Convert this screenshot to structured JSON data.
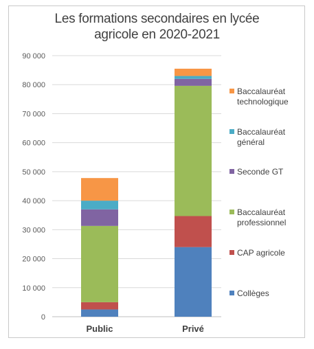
{
  "chart_data": {
    "type": "bar",
    "stacked": true,
    "title_lines": [
      "Les formations secondaires en lycée",
      "agricole en 2020-2021"
    ],
    "xlabel": "",
    "ylabel": "",
    "categories": [
      "Public",
      "Privé"
    ],
    "ylim": [
      0,
      90000
    ],
    "yticks": [
      0,
      10000,
      20000,
      30000,
      40000,
      50000,
      60000,
      70000,
      80000,
      90000
    ],
    "ytick_labels": [
      "0",
      "10 000",
      "20 000",
      "30 000",
      "40 000",
      "50 000",
      "60 000",
      "70 000",
      "80 000",
      "90 000"
    ],
    "grid": true,
    "legend_position": "right",
    "series": [
      {
        "name": "Collèges",
        "label_lines": [
          "Collèges"
        ],
        "color": "#4f81bd",
        "values": [
          2500,
          24000
        ]
      },
      {
        "name": "CAP agricole",
        "label_lines": [
          "CAP agricole"
        ],
        "color": "#c0504d",
        "values": [
          2500,
          10700
        ]
      },
      {
        "name": "Baccalauréat professionnel",
        "label_lines": [
          "Baccalauréat",
          "professionnel"
        ],
        "color": "#9bbb59",
        "values": [
          26300,
          44900
        ]
      },
      {
        "name": "Seconde GT",
        "label_lines": [
          "Seconde GT"
        ],
        "color": "#8064a2",
        "values": [
          5700,
          2400
        ]
      },
      {
        "name": "Baccalauréat général",
        "label_lines": [
          "Baccalauréat",
          "général"
        ],
        "color": "#4bacc6",
        "values": [
          3000,
          1000
        ]
      },
      {
        "name": "Baccalauréat technologique",
        "label_lines": [
          "Baccalauréat",
          "technologique"
        ],
        "color": "#f79646",
        "values": [
          7800,
          2500
        ]
      }
    ]
  }
}
